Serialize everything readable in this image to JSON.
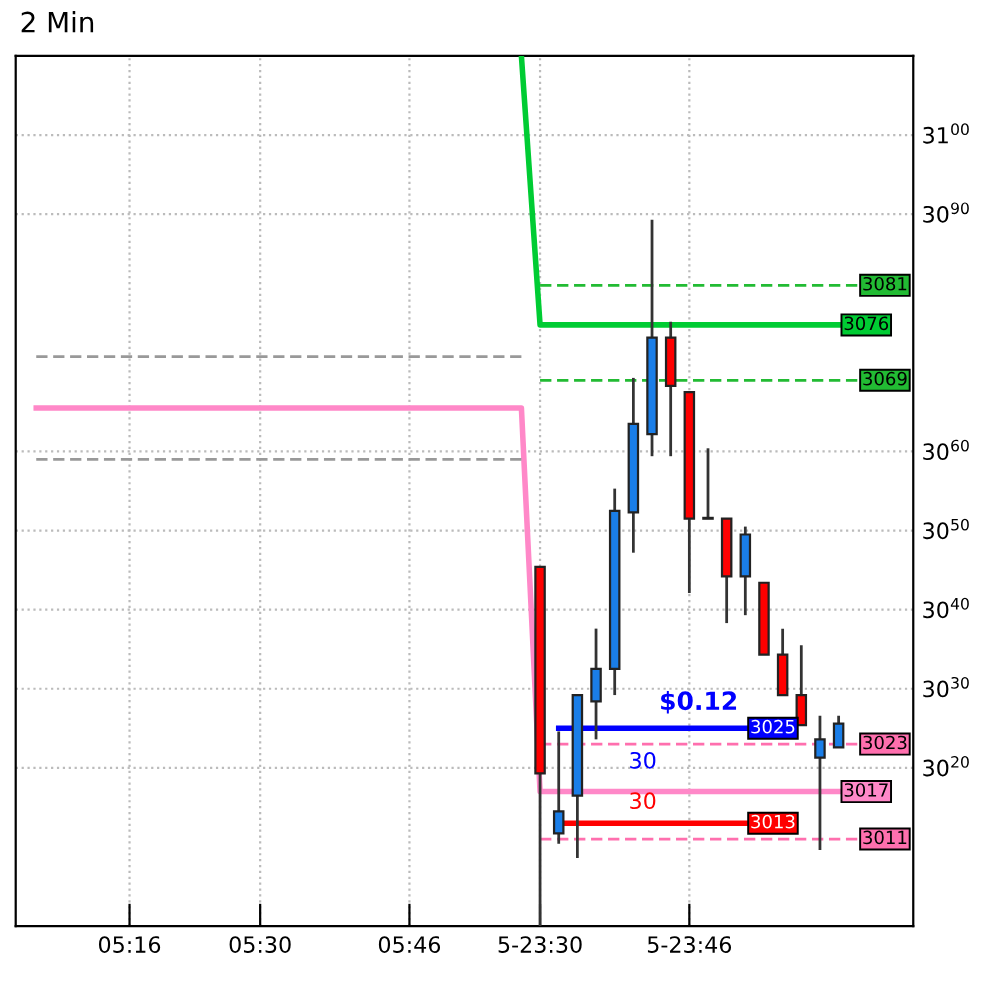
{
  "chart_data": {
    "type": "candlestick",
    "title": "2 Min",
    "categories": [
      null,
      null,
      null,
      null,
      null,
      "05:16",
      null,
      null,
      null,
      null,
      null,
      null,
      "05:30",
      null,
      null,
      null,
      null,
      null,
      null,
      null,
      "05:46",
      null,
      null,
      null,
      null,
      null,
      null,
      "5-23:30",
      null,
      null,
      null,
      null,
      null,
      null,
      null,
      "5-23:46",
      null,
      null,
      null,
      null,
      null,
      null,
      null,
      null,
      null
    ],
    "ohlc": [
      null,
      null,
      null,
      null,
      null,
      null,
      null,
      null,
      null,
      null,
      null,
      null,
      null,
      null,
      null,
      null,
      null,
      null,
      null,
      null,
      null,
      null,
      null,
      null,
      null,
      null,
      null,
      [
        3045.4,
        3045.4,
        3000,
        3019.3
      ],
      [
        3011.7,
        3024.6,
        3010.4,
        3014.5
      ],
      [
        3016.5,
        3029.2,
        3008.6,
        3029.2
      ],
      [
        3028.4,
        3037.6,
        3023.6,
        3032.5
      ],
      [
        3032.5,
        3055.3,
        3029.2,
        3052.5
      ],
      [
        3052.3,
        3069.3,
        3047.2,
        3063.5
      ],
      [
        3062.2,
        3089.3,
        3059.4,
        3074.4
      ],
      [
        3074.4,
        3076.4,
        3059.4,
        3068.3
      ],
      [
        3067.5,
        3067.5,
        3042.1,
        3051.5
      ],
      [
        3051.6,
        3060.4,
        3051.5,
        3051.5
      ],
      [
        3051.5,
        3051.5,
        3038.3,
        3044.2
      ],
      [
        3044.2,
        3050.5,
        3039.3,
        3049.5
      ],
      [
        3043.4,
        3043.4,
        3034.3,
        3034.3
      ],
      [
        3034.3,
        3037.6,
        3029.2,
        3029.2
      ],
      [
        3029.2,
        3035.5,
        3025.4,
        3025.4
      ],
      [
        3021.3,
        3026.6,
        3009.6,
        3023.6
      ],
      [
        3022.6,
        3026.6,
        3022.6,
        3025.6
      ],
      null
    ],
    "colors": [
      null,
      null,
      null,
      null,
      null,
      null,
      null,
      null,
      null,
      null,
      null,
      null,
      null,
      null,
      null,
      null,
      null,
      null,
      null,
      null,
      null,
      null,
      null,
      null,
      null,
      null,
      null,
      "#ff0000",
      "#1a7ee8",
      "#1a7ee8",
      "#1a7ee8",
      "#1a7ee8",
      "#1a7ee8",
      "#1a7ee8",
      "#ff0000",
      "#ff0000",
      "#000000",
      "#ff0000",
      "#1a7ee8",
      "#ff0000",
      "#ff0000",
      "#ff0000",
      "#1a7ee8",
      "#1a7ee8",
      null
    ],
    "series": [
      {
        "type": "line",
        "color": "#00cc33",
        "line_style": "solid",
        "values": [
          null,
          null,
          null,
          null,
          null,
          null,
          null,
          null,
          null,
          null,
          null,
          null,
          null,
          null,
          null,
          null,
          null,
          null,
          null,
          null,
          null,
          null,
          null,
          null,
          null,
          null,
          3110,
          3076,
          3076,
          3076,
          3076,
          3076,
          3076,
          3076,
          3076,
          3076,
          3076,
          3076,
          3076,
          3076,
          3076,
          3076,
          3076,
          3076,
          null
        ],
        "value_labels": [
          null,
          null,
          null,
          null,
          null,
          null,
          null,
          null,
          null,
          null,
          null,
          null,
          null,
          null,
          null,
          null,
          null,
          null,
          null,
          null,
          null,
          null,
          null,
          null,
          null,
          null,
          null,
          null,
          null,
          null,
          null,
          null,
          null,
          null,
          null,
          null,
          null,
          null,
          null,
          null,
          null,
          null,
          null,
          "3076",
          null
        ]
      },
      {
        "type": "line",
        "color": "#ff88c8",
        "line_style": "solid",
        "values": [
          3065.5,
          3065.5,
          3065.5,
          3065.5,
          3065.5,
          3065.5,
          3065.5,
          3065.5,
          3065.5,
          3065.5,
          3065.5,
          3065.5,
          3065.5,
          3065.5,
          3065.5,
          3065.5,
          3065.5,
          3065.5,
          3065.5,
          3065.5,
          3065.5,
          3065.5,
          3065.5,
          3065.5,
          3065.5,
          3065.5,
          3065.5,
          3017,
          3017,
          3017,
          3017,
          3017,
          3017,
          3017,
          3017,
          3017,
          3017,
          3017,
          3017,
          3017,
          3017,
          3017,
          3017,
          3017,
          null
        ],
        "value_labels": [
          null,
          null,
          null,
          null,
          null,
          null,
          null,
          null,
          null,
          null,
          null,
          null,
          null,
          null,
          null,
          null,
          null,
          null,
          null,
          null,
          null,
          null,
          null,
          null,
          null,
          null,
          null,
          null,
          null,
          null,
          null,
          null,
          null,
          null,
          null,
          null,
          null,
          null,
          null,
          null,
          null,
          null,
          null,
          "3017",
          null
        ]
      },
      {
        "type": "line",
        "color": "#0000ff",
        "line_style": "solid",
        "values": [
          null,
          null,
          null,
          null,
          null,
          null,
          null,
          null,
          null,
          null,
          null,
          null,
          null,
          null,
          null,
          null,
          null,
          null,
          null,
          null,
          null,
          null,
          null,
          null,
          null,
          null,
          null,
          null,
          3025,
          3025,
          3025,
          3025,
          3025,
          3025,
          3025,
          3025,
          3025,
          3025,
          3025,
          null,
          null,
          null,
          null,
          null,
          null
        ],
        "value_labels": [
          null,
          null,
          null,
          null,
          null,
          null,
          null,
          null,
          null,
          null,
          null,
          null,
          null,
          null,
          null,
          null,
          null,
          null,
          null,
          null,
          null,
          null,
          null,
          null,
          null,
          null,
          null,
          null,
          null,
          null,
          null,
          null,
          null,
          null,
          null,
          null,
          null,
          null,
          "3025",
          null,
          null,
          null,
          null,
          null,
          null
        ]
      },
      {
        "type": "line",
        "color": "#ff0000",
        "line_style": "solid",
        "values": [
          null,
          null,
          null,
          null,
          null,
          null,
          null,
          null,
          null,
          null,
          null,
          null,
          null,
          null,
          null,
          null,
          null,
          null,
          null,
          null,
          null,
          null,
          null,
          null,
          null,
          null,
          null,
          null,
          3013,
          3013,
          3013,
          3013,
          3013,
          3013,
          3013,
          3013,
          3013,
          3013,
          3013,
          null,
          null,
          null,
          null,
          null,
          null
        ],
        "value_labels": [
          null,
          null,
          null,
          null,
          null,
          null,
          null,
          null,
          null,
          null,
          null,
          null,
          null,
          null,
          null,
          null,
          null,
          null,
          null,
          null,
          null,
          null,
          null,
          null,
          null,
          null,
          null,
          null,
          null,
          null,
          null,
          null,
          null,
          null,
          null,
          null,
          null,
          null,
          "3013",
          null,
          null,
          null,
          null,
          null,
          null
        ]
      },
      {
        "type": "line",
        "color": "#22bb33",
        "line_style": "dashed",
        "values": [
          null,
          null,
          null,
          null,
          null,
          null,
          null,
          null,
          null,
          null,
          null,
          null,
          null,
          null,
          null,
          null,
          null,
          null,
          null,
          null,
          null,
          null,
          null,
          null,
          null,
          null,
          null,
          3081,
          3081,
          3081,
          3081,
          3081,
          3081,
          3081,
          3081,
          3081,
          3081,
          3081,
          3081,
          3081,
          3081,
          3081,
          3081,
          3081,
          3081
        ],
        "value_labels": [
          null,
          null,
          null,
          null,
          null,
          null,
          null,
          null,
          null,
          null,
          null,
          null,
          null,
          null,
          null,
          null,
          null,
          null,
          null,
          null,
          null,
          null,
          null,
          null,
          null,
          null,
          null,
          null,
          null,
          null,
          null,
          null,
          null,
          null,
          null,
          null,
          null,
          null,
          null,
          null,
          null,
          null,
          null,
          null,
          "3081"
        ]
      },
      {
        "type": "line",
        "color": "#22bb33",
        "line_style": "dashed",
        "values": [
          null,
          null,
          null,
          null,
          null,
          null,
          null,
          null,
          null,
          null,
          null,
          null,
          null,
          null,
          null,
          null,
          null,
          null,
          null,
          null,
          null,
          null,
          null,
          null,
          null,
          null,
          null,
          3069,
          3069,
          3069,
          3069,
          3069,
          3069,
          3069,
          3069,
          3069,
          3069,
          3069,
          3069,
          3069,
          3069,
          3069,
          3069,
          3069,
          3069
        ],
        "value_labels": [
          null,
          null,
          null,
          null,
          null,
          null,
          null,
          null,
          null,
          null,
          null,
          null,
          null,
          null,
          null,
          null,
          null,
          null,
          null,
          null,
          null,
          null,
          null,
          null,
          null,
          null,
          null,
          null,
          null,
          null,
          null,
          null,
          null,
          null,
          null,
          null,
          null,
          null,
          null,
          null,
          null,
          null,
          null,
          null,
          "3069"
        ]
      },
      {
        "type": "line",
        "color": "#ff6fae",
        "line_style": "dashed",
        "values": [
          null,
          null,
          null,
          null,
          null,
          null,
          null,
          null,
          null,
          null,
          null,
          null,
          null,
          null,
          null,
          null,
          null,
          null,
          null,
          null,
          null,
          null,
          null,
          null,
          null,
          null,
          null,
          3023,
          3023,
          3023,
          3023,
          3023,
          3023,
          3023,
          3023,
          3023,
          3023,
          3023,
          3023,
          3023,
          3023,
          3023,
          3023,
          3023,
          3023
        ],
        "value_labels": [
          null,
          null,
          null,
          null,
          null,
          null,
          null,
          null,
          null,
          null,
          null,
          null,
          null,
          null,
          null,
          null,
          null,
          null,
          null,
          null,
          null,
          null,
          null,
          null,
          null,
          null,
          null,
          null,
          null,
          null,
          null,
          null,
          null,
          null,
          null,
          null,
          null,
          null,
          null,
          null,
          null,
          null,
          null,
          null,
          "3023"
        ]
      },
      {
        "type": "line",
        "color": "#ff6fae",
        "line_style": "dashed",
        "values": [
          null,
          null,
          null,
          null,
          null,
          null,
          null,
          null,
          null,
          null,
          null,
          null,
          null,
          null,
          null,
          null,
          null,
          null,
          null,
          null,
          null,
          null,
          null,
          null,
          null,
          null,
          null,
          3011,
          3011,
          3011,
          3011,
          3011,
          3011,
          3011,
          3011,
          3011,
          3011,
          3011,
          3011,
          3011,
          3011,
          3011,
          3011,
          3011,
          3011
        ],
        "value_labels": [
          null,
          null,
          null,
          null,
          null,
          null,
          null,
          null,
          null,
          null,
          null,
          null,
          null,
          null,
          null,
          null,
          null,
          null,
          null,
          null,
          null,
          null,
          null,
          null,
          null,
          null,
          null,
          null,
          null,
          null,
          null,
          null,
          null,
          null,
          null,
          null,
          null,
          null,
          null,
          null,
          null,
          null,
          null,
          null,
          "3011"
        ]
      },
      {
        "type": "line",
        "color": "#999999",
        "line_style": "dashed",
        "values": [
          3072,
          3072,
          3072,
          3072,
          3072,
          3072,
          3072,
          3072,
          3072,
          3072,
          3072,
          3072,
          3072,
          3072,
          3072,
          3072,
          3072,
          3072,
          3072,
          3072,
          3072,
          3072,
          3072,
          3072,
          3072,
          3072,
          3072,
          null,
          null,
          null,
          null,
          null,
          null,
          null,
          null,
          null,
          null,
          null,
          null,
          null,
          null,
          null,
          null,
          null,
          null
        ]
      },
      {
        "type": "line",
        "color": "#999999",
        "line_style": "dashed",
        "values": [
          3059,
          3059,
          3059,
          3059,
          3059,
          3059,
          3059,
          3059,
          3059,
          3059,
          3059,
          3059,
          3059,
          3059,
          3059,
          3059,
          3059,
          3059,
          3059,
          3059,
          3059,
          3059,
          3059,
          3059,
          3059,
          3059,
          3059,
          null,
          null,
          null,
          null,
          null,
          null,
          null,
          null,
          null,
          null,
          null,
          null,
          null,
          null,
          null,
          null,
          null,
          null
        ]
      }
    ],
    "annotations": [
      "$0.12",
      "30",
      "30"
    ],
    "ylim": [
      3000,
      3110
    ],
    "yticks": [
      3020,
      3030,
      3040,
      3050,
      3060,
      3090,
      3100
    ],
    "grid": true
  }
}
